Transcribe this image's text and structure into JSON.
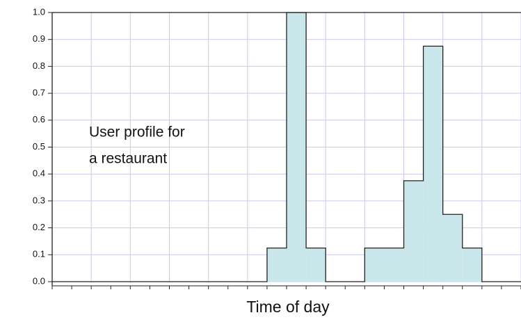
{
  "chart_data": {
    "type": "histogram",
    "xlabel": "Time of day",
    "annotation": [
      "User profile for",
      "a restaurant"
    ],
    "bins": [
      0,
      1,
      2,
      3,
      4,
      5,
      6,
      7,
      8,
      9,
      10,
      11,
      12,
      13,
      14,
      15,
      16,
      17,
      18,
      19,
      20,
      21,
      22,
      23,
      24
    ],
    "values": [
      0,
      0,
      0,
      0,
      0,
      0,
      0,
      0,
      0,
      0,
      0,
      0.125,
      1.0,
      0.125,
      0,
      0,
      0.125,
      0.125,
      0.375,
      0.875,
      0.25,
      0.125,
      0,
      0
    ],
    "color": "#c9e7ea",
    "xlim": [
      0,
      24
    ],
    "xticks": [
      0,
      2,
      4,
      6,
      8,
      10,
      12,
      14,
      16,
      18,
      20,
      22,
      24
    ],
    "ylim": [
      0,
      1.0
    ],
    "yticks": [
      {
        "value": 0,
        "label": "0.0"
      },
      0.1,
      0.2,
      0.3,
      0.4,
      0.5,
      0.6,
      0.7,
      0.8,
      0.9,
      {
        "value": 1.0,
        "label": "1.0"
      }
    ],
    "grid": true
  }
}
